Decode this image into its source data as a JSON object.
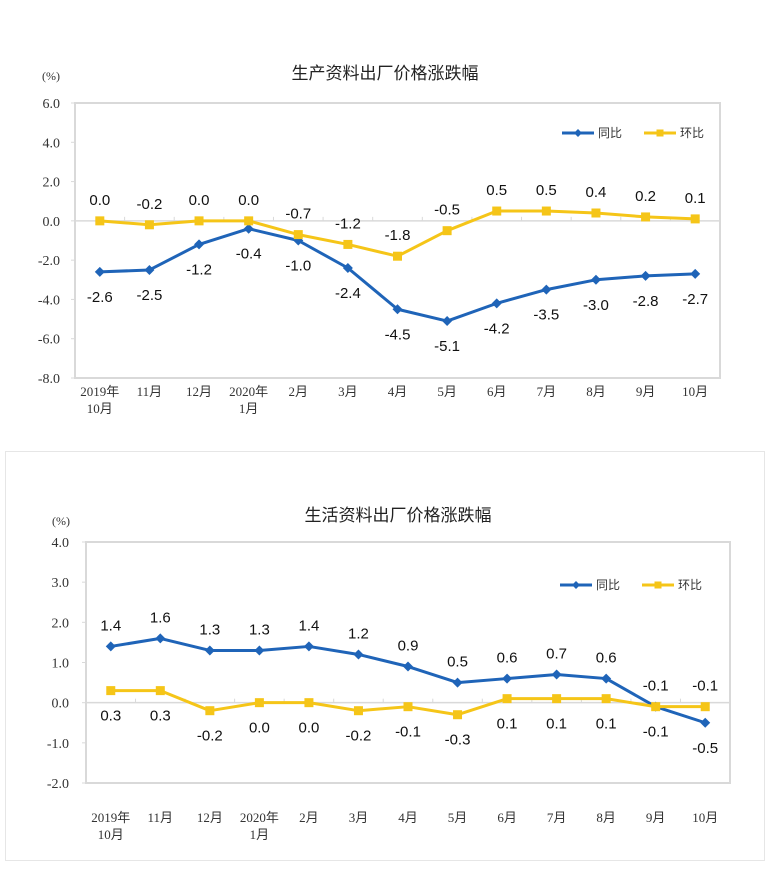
{
  "colors": {
    "yoy": "#1f64b8",
    "mom": "#f5c518",
    "axis": "#d9d9d9",
    "text": "#222222"
  },
  "chart_data": [
    {
      "type": "line",
      "title": "生产资料出厂价格涨跌幅",
      "unit": "(%)",
      "xlabel": "",
      "ylabel": "(%)",
      "ylim": [
        -8.0,
        6.0
      ],
      "yticks": [
        6.0,
        4.0,
        2.0,
        0.0,
        -2.0,
        -4.0,
        -6.0,
        -8.0
      ],
      "ytick_labels": [
        "6.0",
        "4.0",
        "2.0",
        "0.0",
        "-2.0",
        "-4.0",
        "-6.0",
        "-8.0"
      ],
      "grid": false,
      "legend_position": "top-right",
      "categories": [
        [
          "2019年",
          "10月"
        ],
        [
          "11月"
        ],
        [
          "12月"
        ],
        [
          "2020年",
          "1月"
        ],
        [
          "2月"
        ],
        [
          "3月"
        ],
        [
          "4月"
        ],
        [
          "5月"
        ],
        [
          "6月"
        ],
        [
          "7月"
        ],
        [
          "8月"
        ],
        [
          "9月"
        ],
        [
          "10月"
        ]
      ],
      "series": [
        {
          "name": "同比",
          "key": "yoy",
          "marker": "diamond",
          "values": [
            -2.6,
            -2.5,
            -1.2,
            -0.4,
            -1.0,
            -2.4,
            -4.5,
            -5.1,
            -4.2,
            -3.5,
            -3.0,
            -2.8,
            -2.7
          ],
          "labels": [
            "-2.6",
            "-2.5",
            "-1.2",
            "-0.4",
            "-1.0",
            "-2.4",
            "-4.5",
            "-5.1",
            "-4.2",
            "-3.5",
            "-3.0",
            "-2.8",
            "-2.7"
          ],
          "label_pos": [
            "below",
            "below",
            "below",
            "below",
            "below",
            "below",
            "below",
            "below",
            "below",
            "below",
            "below",
            "below",
            "below"
          ]
        },
        {
          "name": "环比",
          "key": "mom",
          "marker": "square",
          "values": [
            0.0,
            -0.2,
            0.0,
            0.0,
            -0.7,
            -1.2,
            -1.8,
            -0.5,
            0.5,
            0.5,
            0.4,
            0.2,
            0.1
          ],
          "labels": [
            "0.0",
            "-0.2",
            "0.0",
            "0.0",
            "-0.7",
            "-1.2",
            "-1.8",
            "-0.5",
            "0.5",
            "0.5",
            "0.4",
            "0.2",
            "0.1"
          ],
          "label_pos": [
            "above",
            "above",
            "above",
            "above",
            "above",
            "above",
            "above",
            "above",
            "above",
            "above",
            "above",
            "above",
            "above"
          ]
        }
      ]
    },
    {
      "type": "line",
      "title": "生活资料出厂价格涨跌幅",
      "unit": "(%)",
      "xlabel": "",
      "ylabel": "(%)",
      "ylim": [
        -2.0,
        4.0
      ],
      "yticks": [
        4.0,
        3.0,
        2.0,
        1.0,
        0.0,
        -1.0,
        -2.0
      ],
      "ytick_labels": [
        "4.0",
        "3.0",
        "2.0",
        "1.0",
        "0.0",
        "-1.0",
        "-2.0"
      ],
      "grid": false,
      "legend_position": "top-right",
      "categories": [
        [
          "2019年",
          "10月"
        ],
        [
          "11月"
        ],
        [
          "12月"
        ],
        [
          "2020年",
          "1月"
        ],
        [
          "2月"
        ],
        [
          "3月"
        ],
        [
          "4月"
        ],
        [
          "5月"
        ],
        [
          "6月"
        ],
        [
          "7月"
        ],
        [
          "8月"
        ],
        [
          "9月"
        ],
        [
          "10月"
        ]
      ],
      "series": [
        {
          "name": "同比",
          "key": "yoy",
          "marker": "diamond",
          "values": [
            1.4,
            1.6,
            1.3,
            1.3,
            1.4,
            1.2,
            0.9,
            0.5,
            0.6,
            0.7,
            0.6,
            -0.1,
            -0.5
          ],
          "labels": [
            "1.4",
            "1.6",
            "1.3",
            "1.3",
            "1.4",
            "1.2",
            "0.9",
            "0.5",
            "0.6",
            "0.7",
            "0.6",
            "-0.1",
            "-0.5"
          ],
          "label_pos": [
            "above",
            "above",
            "above",
            "above",
            "above",
            "above",
            "above",
            "above",
            "above",
            "above",
            "above",
            "below",
            "below"
          ]
        },
        {
          "name": "环比",
          "key": "mom",
          "marker": "square",
          "values": [
            0.3,
            0.3,
            -0.2,
            0.0,
            0.0,
            -0.2,
            -0.1,
            -0.3,
            0.1,
            0.1,
            0.1,
            -0.1,
            -0.1
          ],
          "labels": [
            "0.3",
            "0.3",
            "-0.2",
            "0.0",
            "0.0",
            "-0.2",
            "-0.1",
            "-0.3",
            "0.1",
            "0.1",
            "0.1",
            "-0.1",
            "-0.1"
          ],
          "label_pos": [
            "below",
            "below",
            "below",
            "below",
            "below",
            "below",
            "below",
            "below",
            "below",
            "below",
            "below",
            "above",
            "above"
          ]
        }
      ]
    }
  ]
}
